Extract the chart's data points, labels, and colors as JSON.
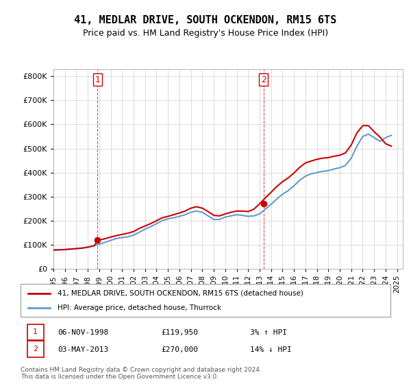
{
  "title": "41, MEDLAR DRIVE, SOUTH OCKENDON, RM15 6TS",
  "subtitle": "Price paid vs. HM Land Registry's House Price Index (HPI)",
  "legend_line1": "41, MEDLAR DRIVE, SOUTH OCKENDON, RM15 6TS (detached house)",
  "legend_line2": "HPI: Average price, detached house, Thurrock",
  "footnote": "Contains HM Land Registry data © Crown copyright and database right 2024.\nThis data is licensed under the Open Government Licence v3.0.",
  "transaction1_label": "1",
  "transaction1_date": "06-NOV-1998",
  "transaction1_price": "£119,950",
  "transaction1_hpi": "3% ↑ HPI",
  "transaction2_label": "2",
  "transaction2_date": "03-MAY-2013",
  "transaction2_price": "£270,000",
  "transaction2_hpi": "14% ↓ HPI",
  "ylim": [
    0,
    830000
  ],
  "yticks": [
    0,
    100000,
    200000,
    300000,
    400000,
    500000,
    600000,
    700000,
    800000
  ],
  "ytick_labels": [
    "£0",
    "£100K",
    "£200K",
    "£300K",
    "£400K",
    "£500K",
    "£600K",
    "£700K",
    "£800K"
  ],
  "hpi_color": "#6699cc",
  "price_color": "#cc0000",
  "marker_color": "#cc0000",
  "transaction1_x": 1998.84,
  "transaction1_y": 119950,
  "transaction2_x": 2013.34,
  "transaction2_y": 270000,
  "hpi_years": [
    1995,
    1995.5,
    1996,
    1996.5,
    1997,
    1997.5,
    1998,
    1998.5,
    1999,
    1999.5,
    2000,
    2000.5,
    2001,
    2001.5,
    2002,
    2002.5,
    2003,
    2003.5,
    2004,
    2004.5,
    2005,
    2005.5,
    2006,
    2006.5,
    2007,
    2007.5,
    2008,
    2008.5,
    2009,
    2009.5,
    2010,
    2010.5,
    2011,
    2011.5,
    2012,
    2012.5,
    2013,
    2013.5,
    2014,
    2014.5,
    2015,
    2015.5,
    2016,
    2016.5,
    2017,
    2017.5,
    2018,
    2018.5,
    2019,
    2019.5,
    2020,
    2020.5,
    2021,
    2021.5,
    2022,
    2022.5,
    2023,
    2023.5,
    2024,
    2024.5
  ],
  "hpi_values": [
    78000,
    79000,
    80000,
    82000,
    84000,
    86000,
    90000,
    95000,
    102000,
    110000,
    118000,
    126000,
    130000,
    133000,
    140000,
    152000,
    165000,
    175000,
    188000,
    200000,
    208000,
    212000,
    218000,
    225000,
    235000,
    240000,
    235000,
    220000,
    205000,
    205000,
    215000,
    220000,
    225000,
    222000,
    218000,
    220000,
    228000,
    248000,
    268000,
    290000,
    310000,
    325000,
    345000,
    368000,
    385000,
    395000,
    400000,
    405000,
    408000,
    415000,
    420000,
    430000,
    460000,
    510000,
    550000,
    560000,
    545000,
    530000,
    545000,
    555000
  ],
  "price_years": [
    1995,
    1995.5,
    1996,
    1996.5,
    1997,
    1997.5,
    1998,
    1998.5,
    1999,
    1999.5,
    2000,
    2000.5,
    2001,
    2001.5,
    2002,
    2002.5,
    2003,
    2003.5,
    2004,
    2004.5,
    2005,
    2005.5,
    2006,
    2006.5,
    2007,
    2007.5,
    2008,
    2008.5,
    2009,
    2009.5,
    2010,
    2010.5,
    2011,
    2011.5,
    2012,
    2012.5,
    2013,
    2013.5,
    2014,
    2014.5,
    2015,
    2015.5,
    2016,
    2016.5,
    2017,
    2017.5,
    2018,
    2018.5,
    2019,
    2019.5,
    2020,
    2020.5,
    2021,
    2021.5,
    2022,
    2022.5,
    2023,
    2023.5,
    2024,
    2024.5
  ],
  "price_values": [
    78000,
    79000,
    80000,
    82000,
    84000,
    86000,
    90000,
    95000,
    119950,
    125000,
    132000,
    138000,
    143000,
    148000,
    155000,
    168000,
    178000,
    188000,
    200000,
    212000,
    218000,
    225000,
    232000,
    240000,
    252000,
    258000,
    252000,
    238000,
    222000,
    220000,
    228000,
    235000,
    240000,
    240000,
    238000,
    248000,
    270000,
    295000,
    318000,
    342000,
    362000,
    378000,
    398000,
    422000,
    440000,
    448000,
    455000,
    460000,
    462000,
    468000,
    472000,
    482000,
    515000,
    565000,
    595000,
    595000,
    570000,
    548000,
    520000,
    510000
  ],
  "xlim_start": 1995,
  "xlim_end": 2025.5,
  "xtick_years": [
    1995,
    1996,
    1997,
    1998,
    1999,
    2000,
    2001,
    2002,
    2003,
    2004,
    2005,
    2006,
    2007,
    2008,
    2009,
    2010,
    2011,
    2012,
    2013,
    2014,
    2015,
    2016,
    2017,
    2018,
    2019,
    2020,
    2021,
    2022,
    2023,
    2024,
    2025
  ]
}
